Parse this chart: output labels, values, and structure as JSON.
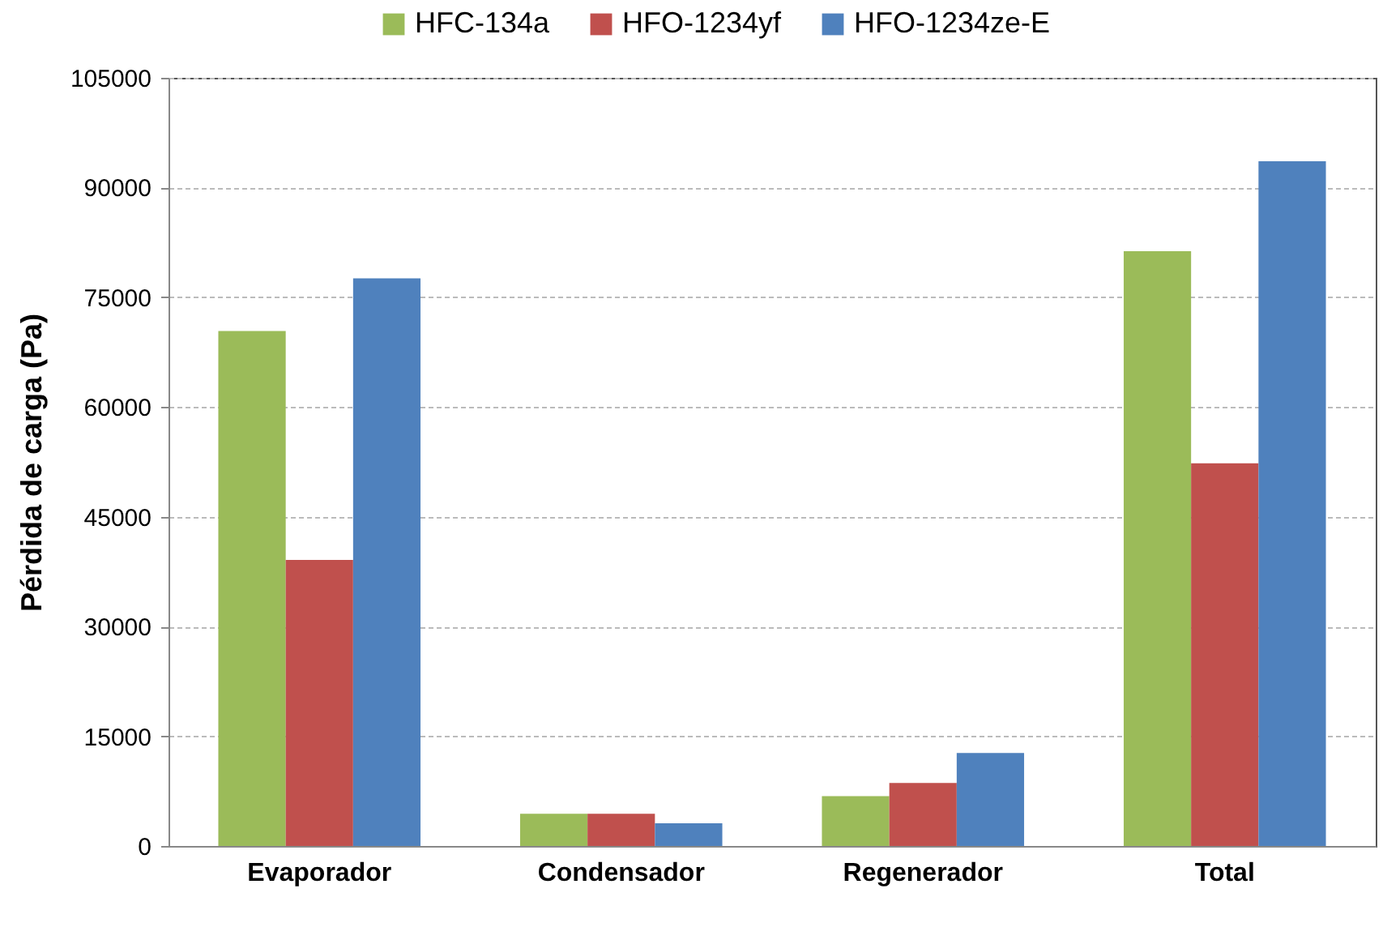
{
  "chart_data": {
    "type": "bar",
    "ylabel": "Pérdida de carga (Pa)",
    "categories": [
      "Evaporador",
      "Condensador",
      "Regenerador",
      "Total"
    ],
    "series": [
      {
        "name": "HFC-134a",
        "color": "#9bbb59",
        "values": [
          70400,
          4400,
          6800,
          81300
        ]
      },
      {
        "name": "HFO-1234yf",
        "color": "#c0504d",
        "values": [
          39100,
          4400,
          8600,
          52300
        ]
      },
      {
        "name": "HFO-1234ze-E",
        "color": "#4f81bd",
        "values": [
          77600,
          3100,
          12700,
          93600
        ]
      }
    ],
    "ylim": [
      0,
      105000
    ],
    "yticks": [
      0,
      15000,
      30000,
      45000,
      60000,
      75000,
      90000,
      105000
    ],
    "grid": "y",
    "legend": "top"
  }
}
